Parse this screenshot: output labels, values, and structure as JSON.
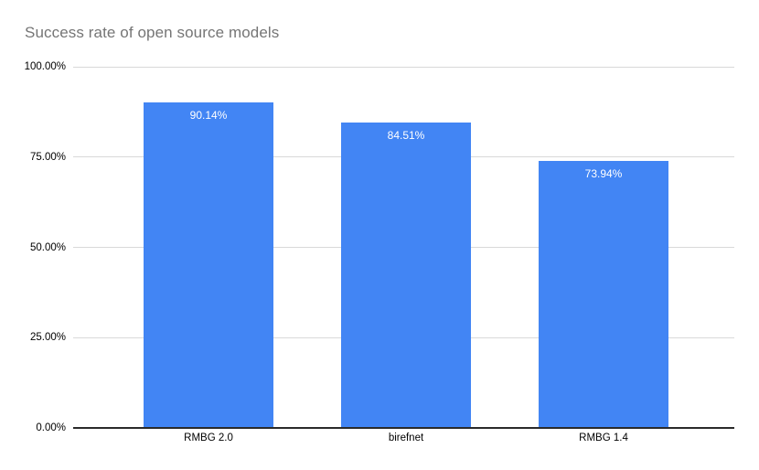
{
  "chart_data": {
    "type": "bar",
    "title": "Success rate of open source models",
    "categories": [
      "RMBG 2.0",
      "birefnet",
      "RMBG 1.4"
    ],
    "values": [
      90.14,
      84.51,
      73.94
    ],
    "value_labels": [
      "90.14%",
      "84.51%",
      "73.94%"
    ],
    "xlabel": "",
    "ylabel": "",
    "ylim": [
      0,
      100
    ],
    "y_ticks": [
      {
        "value": 0,
        "label": "0.00%"
      },
      {
        "value": 25,
        "label": "25.00%"
      },
      {
        "value": 50,
        "label": "50.00%"
      },
      {
        "value": 75,
        "label": "75.00%"
      },
      {
        "value": 100,
        "label": "100.00%"
      }
    ],
    "grid": true,
    "legend": "none",
    "colors": {
      "bar": "#4285F4",
      "bar_value_label": "#FFFFFF",
      "gridline": "#D9D9D9",
      "axis_line": "#2A2A2A",
      "title": "#757575",
      "tick_label": "#000000",
      "background": "#FFFFFF"
    }
  }
}
